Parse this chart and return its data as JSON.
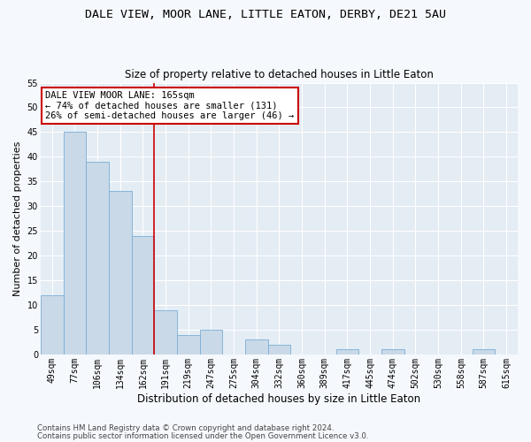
{
  "title": "DALE VIEW, MOOR LANE, LITTLE EATON, DERBY, DE21 5AU",
  "subtitle": "Size of property relative to detached houses in Little Eaton",
  "xlabel": "Distribution of detached houses by size in Little Eaton",
  "ylabel": "Number of detached properties",
  "categories": [
    "49sqm",
    "77sqm",
    "106sqm",
    "134sqm",
    "162sqm",
    "191sqm",
    "219sqm",
    "247sqm",
    "275sqm",
    "304sqm",
    "332sqm",
    "360sqm",
    "389sqm",
    "417sqm",
    "445sqm",
    "474sqm",
    "502sqm",
    "530sqm",
    "558sqm",
    "587sqm",
    "615sqm"
  ],
  "values": [
    12,
    45,
    39,
    33,
    24,
    9,
    4,
    5,
    0,
    3,
    2,
    0,
    0,
    1,
    0,
    1,
    0,
    0,
    0,
    1,
    0
  ],
  "bar_color": "#c9d9e8",
  "bar_edge_color": "#7aaed6",
  "vline_color": "#cc0000",
  "vline_x_index": 4,
  "annotation_line1": "DALE VIEW MOOR LANE: 165sqm",
  "annotation_line2": "← 74% of detached houses are smaller (131)",
  "annotation_line3": "26% of semi-detached houses are larger (46) →",
  "annotation_box_facecolor": "#ffffff",
  "annotation_box_edgecolor": "#cc0000",
  "ylim": [
    0,
    55
  ],
  "yticks": [
    0,
    5,
    10,
    15,
    20,
    25,
    30,
    35,
    40,
    45,
    50,
    55
  ],
  "fig_facecolor": "#f5f8fc",
  "axes_facecolor": "#e4ecf4",
  "grid_color": "#ffffff",
  "title_fontsize": 9.5,
  "subtitle_fontsize": 8.5,
  "ylabel_fontsize": 8,
  "xlabel_fontsize": 8.5,
  "tick_fontsize": 7,
  "annotation_fontsize": 7.5,
  "footer1": "Contains HM Land Registry data © Crown copyright and database right 2024.",
  "footer2": "Contains public sector information licensed under the Open Government Licence v3.0.",
  "footer_fontsize": 6.2
}
